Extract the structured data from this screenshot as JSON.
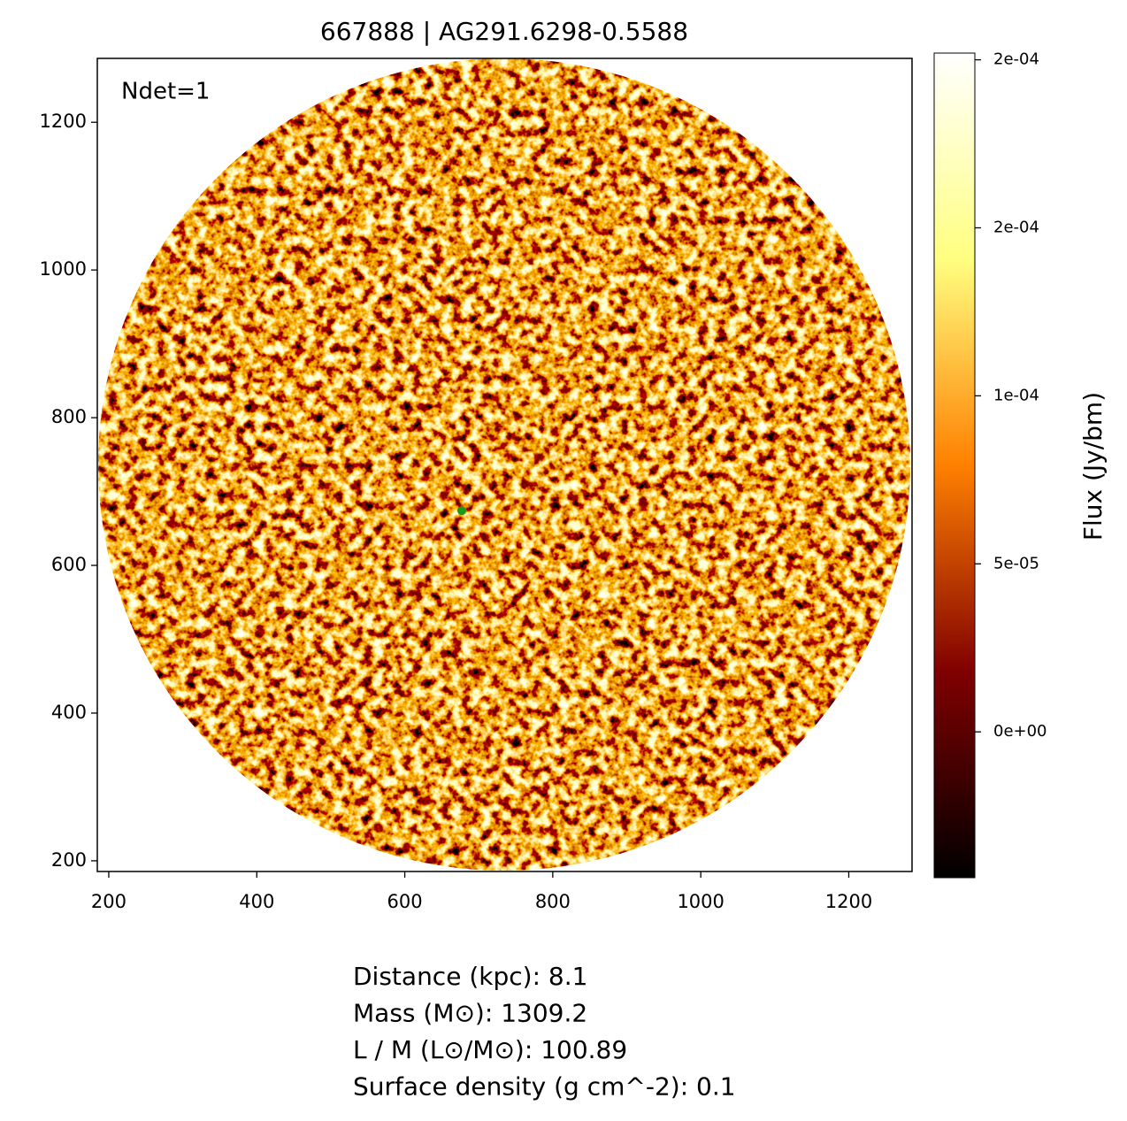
{
  "chart_data": {
    "type": "image",
    "title": "667888 | AG291.6298-0.5588",
    "annotation": "Ndet=1",
    "xlim": [
      184.5,
      1285.5
    ],
    "ylim": [
      185.5,
      1286.5
    ],
    "xticks": [
      200,
      400,
      600,
      800,
      1000,
      1200
    ],
    "yticks": [
      200,
      400,
      600,
      800,
      1000,
      1200
    ],
    "colormap": "afmhot",
    "markers": {
      "x": [
        677
      ],
      "y": [
        674
      ],
      "color": "#1a9a1a"
    },
    "colorbar": {
      "label": "Flux (Jy/bm)",
      "lim": [
        -4.34e-05,
        0.000202
      ],
      "ticks": [
        {
          "value": 0,
          "label": "0e+00"
        },
        {
          "value": 5e-05,
          "label": "5e-05"
        },
        {
          "value": 0.0001,
          "label": "1e-04"
        },
        {
          "value": 0.00015,
          "label": "2e-04"
        },
        {
          "value": 0.0002,
          "label": "2e-04"
        }
      ]
    },
    "info": [
      "Distance (kpc): 8.1",
      "Mass (M⊙): 1309.2",
      "L / M (L⊙/M⊙): 100.89",
      "Surface density (g cm^-2): 0.1"
    ]
  }
}
